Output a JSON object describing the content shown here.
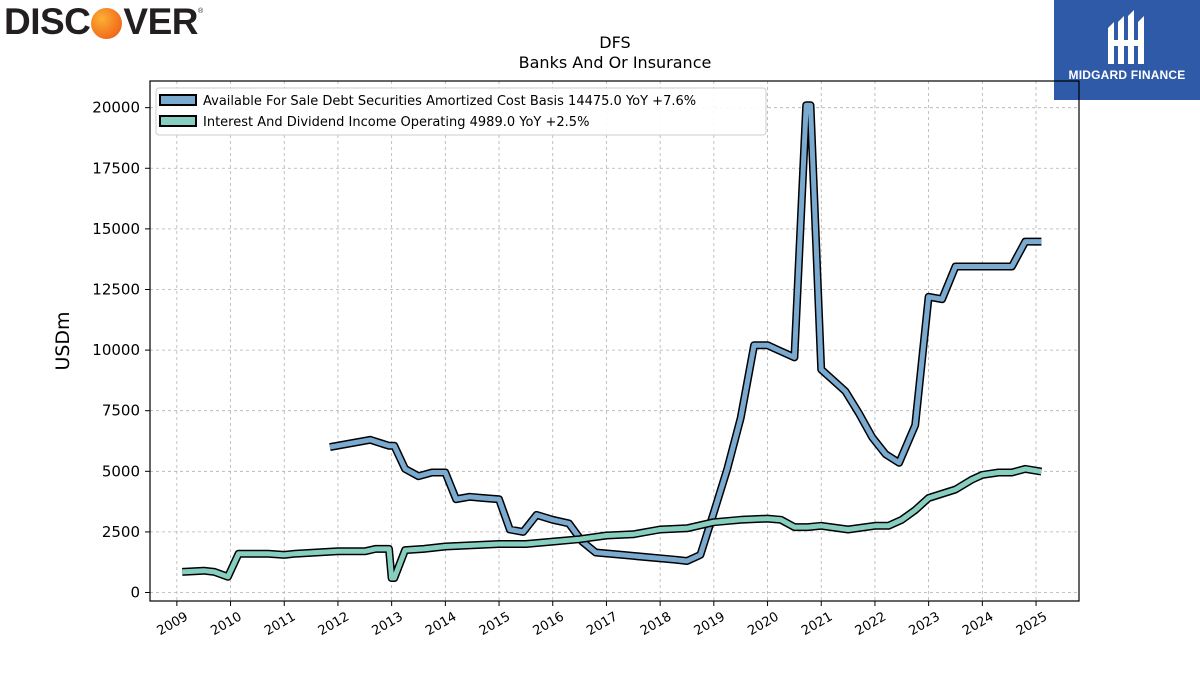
{
  "brand": {
    "left_text": "DISC",
    "right_text": "VER",
    "reg": "®"
  },
  "badge": {
    "label": "MIDGARD FINANCE"
  },
  "chart_data": {
    "type": "line",
    "title": "DFS",
    "subtitle": "Banks And Or Insurance",
    "ylabel": "USDm",
    "xlabel": "",
    "xlim": [
      2008.5,
      2025.8
    ],
    "ylim": [
      -350,
      21100
    ],
    "yticks": [
      0,
      2500,
      5000,
      7500,
      10000,
      12500,
      15000,
      17500,
      20000
    ],
    "xticks": [
      2009,
      2010,
      2011,
      2012,
      2013,
      2014,
      2015,
      2016,
      2017,
      2018,
      2019,
      2020,
      2021,
      2022,
      2023,
      2024,
      2025
    ],
    "grid": true,
    "legend_position": "top-left",
    "series": [
      {
        "name": "Available For Sale Debt Securities Amortized Cost Basis",
        "legend": "Available For Sale Debt Securities Amortized Cost Basis  14475.0 YoY +7.6%",
        "color": "#7aaad0",
        "points": [
          [
            2011.85,
            6000
          ],
          [
            2012.6,
            6300
          ],
          [
            2012.95,
            6050
          ],
          [
            2013.05,
            6050
          ],
          [
            2013.25,
            5100
          ],
          [
            2013.5,
            4800
          ],
          [
            2013.75,
            4950
          ],
          [
            2014.0,
            4950
          ],
          [
            2014.2,
            3850
          ],
          [
            2014.45,
            3950
          ],
          [
            2014.7,
            3900
          ],
          [
            2015.0,
            3850
          ],
          [
            2015.2,
            2600
          ],
          [
            2015.45,
            2500
          ],
          [
            2015.7,
            3200
          ],
          [
            2016.0,
            3000
          ],
          [
            2016.3,
            2850
          ],
          [
            2016.55,
            2100
          ],
          [
            2016.8,
            1650
          ],
          [
            2017.3,
            1550
          ],
          [
            2017.8,
            1450
          ],
          [
            2018.3,
            1350
          ],
          [
            2018.5,
            1300
          ],
          [
            2018.75,
            1550
          ],
          [
            2019.0,
            3300
          ],
          [
            2019.25,
            5100
          ],
          [
            2019.5,
            7200
          ],
          [
            2019.75,
            10200
          ],
          [
            2020.0,
            10200
          ],
          [
            2020.2,
            10000
          ],
          [
            2020.5,
            9700
          ],
          [
            2020.72,
            20100
          ],
          [
            2020.8,
            20100
          ],
          [
            2021.0,
            9200
          ],
          [
            2021.2,
            8800
          ],
          [
            2021.45,
            8300
          ],
          [
            2021.7,
            7400
          ],
          [
            2021.95,
            6400
          ],
          [
            2022.2,
            5700
          ],
          [
            2022.45,
            5350
          ],
          [
            2022.75,
            6900
          ],
          [
            2023.0,
            12200
          ],
          [
            2023.25,
            12100
          ],
          [
            2023.5,
            13450
          ],
          [
            2023.8,
            13450
          ],
          [
            2024.0,
            13450
          ],
          [
            2024.3,
            13450
          ],
          [
            2024.55,
            13450
          ],
          [
            2024.8,
            14475
          ],
          [
            2025.1,
            14475
          ]
        ]
      },
      {
        "name": "Interest And Dividend Income Operating",
        "legend": "Interest And Dividend Income Operating  4989.0 YoY +2.5%",
        "color": "#86cfc0",
        "points": [
          [
            2009.1,
            850
          ],
          [
            2009.5,
            900
          ],
          [
            2009.7,
            850
          ],
          [
            2009.95,
            650
          ],
          [
            2010.15,
            1600
          ],
          [
            2010.5,
            1600
          ],
          [
            2010.7,
            1600
          ],
          [
            2011.0,
            1550
          ],
          [
            2011.2,
            1600
          ],
          [
            2011.6,
            1650
          ],
          [
            2012.0,
            1700
          ],
          [
            2012.5,
            1700
          ],
          [
            2012.7,
            1800
          ],
          [
            2012.95,
            1800
          ],
          [
            2013.0,
            600
          ],
          [
            2013.05,
            600
          ],
          [
            2013.25,
            1750
          ],
          [
            2013.6,
            1800
          ],
          [
            2014.0,
            1900
          ],
          [
            2014.5,
            1950
          ],
          [
            2015.0,
            2000
          ],
          [
            2015.5,
            2000
          ],
          [
            2016.0,
            2100
          ],
          [
            2016.5,
            2200
          ],
          [
            2017.0,
            2350
          ],
          [
            2017.5,
            2400
          ],
          [
            2018.0,
            2600
          ],
          [
            2018.5,
            2650
          ],
          [
            2019.0,
            2900
          ],
          [
            2019.5,
            3000
          ],
          [
            2020.0,
            3050
          ],
          [
            2020.25,
            3000
          ],
          [
            2020.5,
            2700
          ],
          [
            2020.75,
            2700
          ],
          [
            2021.0,
            2750
          ],
          [
            2021.5,
            2600
          ],
          [
            2022.0,
            2750
          ],
          [
            2022.25,
            2750
          ],
          [
            2022.5,
            3000
          ],
          [
            2022.75,
            3400
          ],
          [
            2023.0,
            3900
          ],
          [
            2023.5,
            4250
          ],
          [
            2023.8,
            4650
          ],
          [
            2024.0,
            4850
          ],
          [
            2024.3,
            4950
          ],
          [
            2024.55,
            4950
          ],
          [
            2024.8,
            5100
          ],
          [
            2025.1,
            4989
          ]
        ]
      }
    ]
  }
}
